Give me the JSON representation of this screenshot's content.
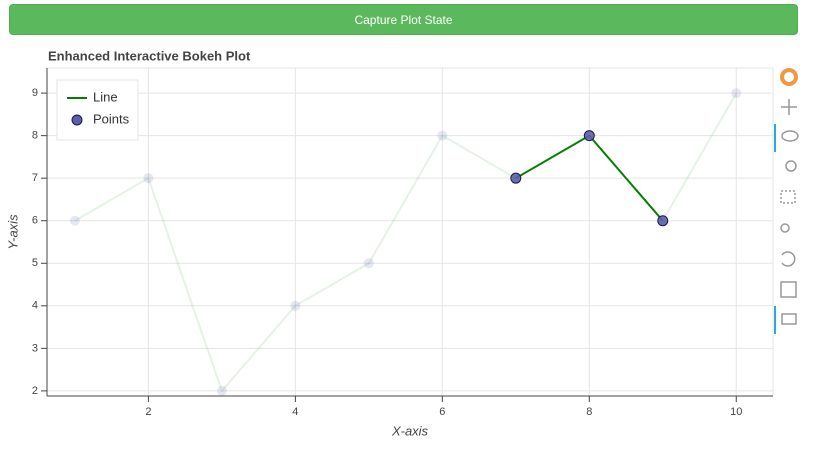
{
  "button": "Capture Plot State",
  "chart_data": {
    "type": "line",
    "title": "Enhanced Interactive Bokeh Plot",
    "x_label": "X-axis",
    "y_label": "Y-axis",
    "x": [
      1,
      2,
      3,
      4,
      5,
      6,
      7,
      8,
      9,
      10
    ],
    "series": [
      {
        "name": "Line",
        "color": "#008000",
        "values": [
          6,
          7,
          2,
          4,
          5,
          8,
          7,
          8,
          6,
          9
        ]
      },
      {
        "name": "Points",
        "color": "#5a5fa8",
        "values": [
          6,
          7,
          2,
          4,
          5,
          8,
          7,
          8,
          6,
          9
        ]
      }
    ],
    "selected": [
      6,
      7,
      8
    ],
    "xlim": [
      0.62,
      10.5
    ],
    "ylim": [
      1.88,
      9.59
    ],
    "xticks": [
      2,
      4,
      6,
      8,
      10
    ],
    "yticks": [
      2,
      3,
      4,
      5,
      6,
      7,
      8,
      9
    ],
    "grid": true,
    "legend": "top-left"
  }
}
